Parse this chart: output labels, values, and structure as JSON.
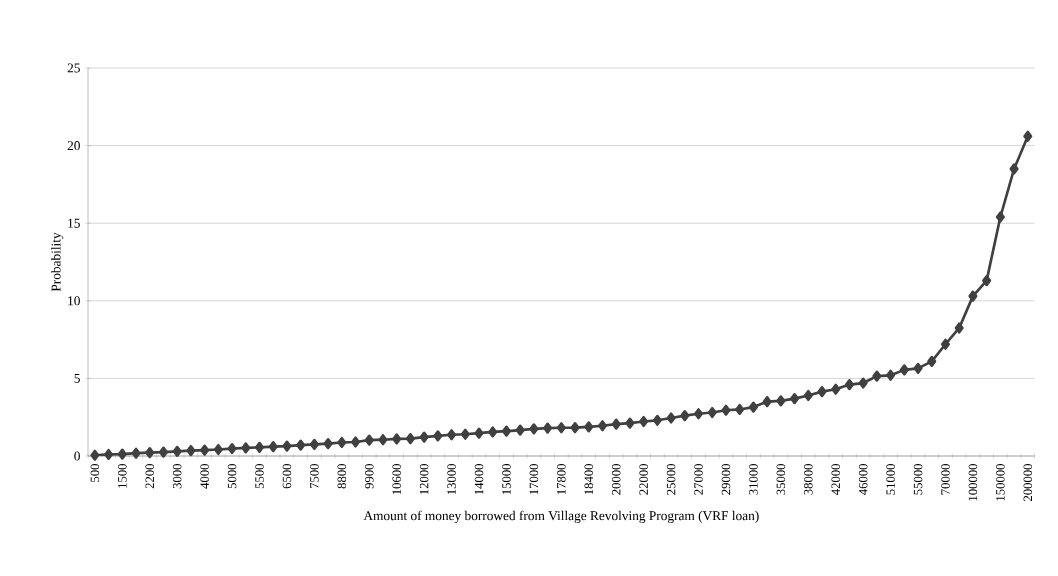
{
  "chart_data": {
    "type": "line",
    "xlabel": "Amount  of  money borrowed from  Village  Revolving  Program  (VRF loan)",
    "ylabel": "Probability",
    "categories": [
      "500",
      null,
      "1500",
      null,
      "2200",
      null,
      "3000",
      null,
      "4000",
      null,
      "5000",
      null,
      "5500",
      null,
      "6500",
      null,
      "7500",
      null,
      "8800",
      null,
      "9900",
      null,
      "10600",
      null,
      "12000",
      null,
      "13000",
      null,
      "14000",
      null,
      "15000",
      null,
      "17000",
      null,
      "17800",
      null,
      "18400",
      null,
      "20000",
      null,
      "22000",
      null,
      "25000",
      null,
      "27000",
      null,
      "29000",
      null,
      "31000",
      null,
      "35000",
      null,
      "38000",
      null,
      "42000",
      null,
      "46000",
      null,
      "51000",
      null,
      "55000",
      null,
      "70000",
      null,
      "100000",
      null,
      "150000",
      null,
      "200000"
    ],
    "series": [
      {
        "color": "#404040",
        "values": [
          0.05,
          0.1,
          0.12,
          0.18,
          0.22,
          0.25,
          0.3,
          0.35,
          0.38,
          0.42,
          0.48,
          0.52,
          0.56,
          0.6,
          0.64,
          0.7,
          0.75,
          0.8,
          0.87,
          0.9,
          1.02,
          1.05,
          1.1,
          1.12,
          1.22,
          1.3,
          1.37,
          1.4,
          1.47,
          1.55,
          1.6,
          1.67,
          1.75,
          1.8,
          1.82,
          1.83,
          1.88,
          1.95,
          2.05,
          2.12,
          2.22,
          2.3,
          2.45,
          2.6,
          2.72,
          2.8,
          2.95,
          3.0,
          3.15,
          3.5,
          3.55,
          3.7,
          3.9,
          4.15,
          4.3,
          4.6,
          4.7,
          5.15,
          5.2,
          5.55,
          5.65,
          6.1,
          7.2,
          8.25,
          10.3,
          11.3,
          15.4,
          18.5,
          20.6
        ]
      }
    ],
    "ylim": [
      0,
      25
    ],
    "yticks": [
      0,
      5,
      10,
      15,
      20,
      25
    ],
    "grid": "y",
    "marker": "diamond",
    "line_style": "solid"
  }
}
